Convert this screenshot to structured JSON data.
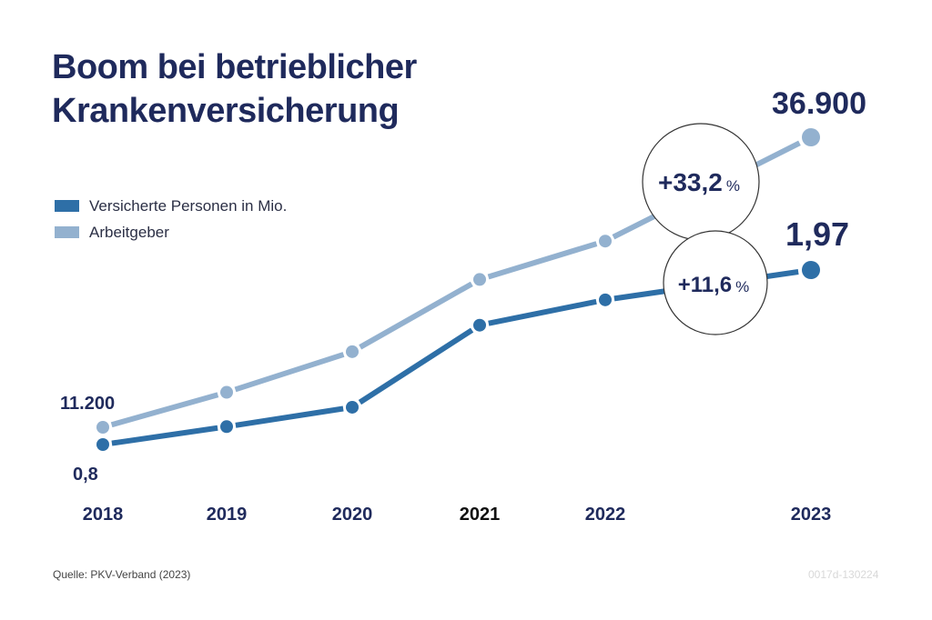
{
  "title_lines": [
    "Boom bei betrieblicher",
    "Krankenversicherung"
  ],
  "colors": {
    "title": "#1f2a5c",
    "series_dark": "#2e6fa7",
    "series_light": "#93b1cf",
    "axis_label": "#1f2a5c",
    "axis_label_highlight": "#111111",
    "circle_stroke": "#333333"
  },
  "legend": [
    {
      "label": "Versicherte Personen in Mio.",
      "color": "#2e6fa7"
    },
    {
      "label": "Arbeitgeber",
      "color": "#93b1cf"
    }
  ],
  "source": "Quelle: PKV-Verband (2023)",
  "code": "0017d-130224",
  "chart_data": {
    "type": "line",
    "title": "Boom bei betrieblicher Krankenversicherung",
    "xlabel": "",
    "ylabel": "",
    "grid": false,
    "legend_position": "left",
    "categories": [
      "2018",
      "2019",
      "2020",
      "2021",
      "2022",
      "2023"
    ],
    "highlight_category": "2021",
    "series": [
      {
        "name": "Versicherte Personen in Mio.",
        "color": "#2e6fa7",
        "values": [
          0.8,
          0.92,
          1.05,
          1.6,
          1.77,
          1.97
        ],
        "ylim": [
          0.5,
          2.2
        ],
        "labels": [
          {
            "index": 0,
            "text": "0,8",
            "position": "below"
          },
          {
            "index": 5,
            "text": "1,97",
            "position": "above"
          }
        ]
      },
      {
        "name": "Arbeitgeber",
        "color": "#93b1cf",
        "values": [
          11200,
          14300,
          17900,
          24300,
          27700,
          36900
        ],
        "ylim": [
          5000,
          45000
        ],
        "labels": [
          {
            "index": 0,
            "text": "11.200",
            "position": "above"
          },
          {
            "index": 5,
            "text": "36.900",
            "position": "above"
          }
        ]
      }
    ],
    "annotations": [
      {
        "series": "Arbeitgeber",
        "text_num": "+33,2",
        "text_unit": "%",
        "between": [
          "2022",
          "2023"
        ]
      },
      {
        "series": "Versicherte Personen in Mio.",
        "text_num": "+11,6",
        "text_unit": "%",
        "between": [
          "2022",
          "2023"
        ]
      }
    ]
  }
}
